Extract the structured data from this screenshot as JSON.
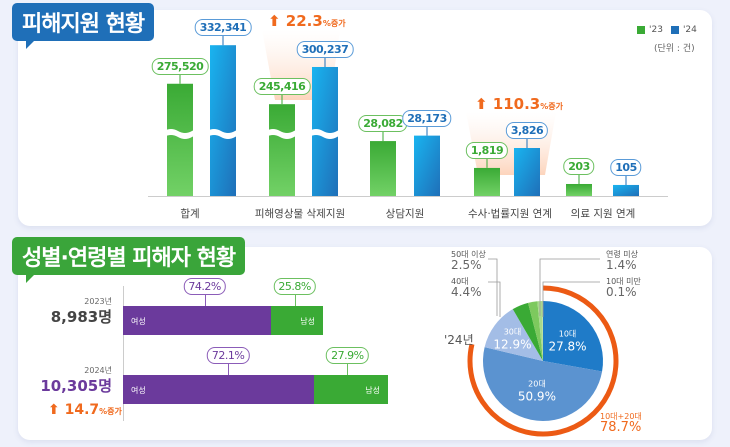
{
  "section1": {
    "title": "피해지원 현황",
    "legend": [
      {
        "label": "'23",
        "color": "#3aaa35"
      },
      {
        "label": "'24",
        "color": "#1f6fb8"
      }
    ],
    "unit": "(단위 : 건)",
    "increases": [
      {
        "value": "22.3",
        "suffix": "%증가"
      },
      {
        "value": "110.3",
        "suffix": "%증가"
      }
    ]
  },
  "section2": {
    "title": "성별·연령별 피해자 현황",
    "years": [
      {
        "year": "2023년",
        "total": "8,983명",
        "female_pct": "74.2%",
        "male_pct": "25.8%",
        "female": 74.2,
        "male": 25.8
      },
      {
        "year": "2024년",
        "total": "10,305명",
        "female_pct": "72.1%",
        "male_pct": "27.9%",
        "female": 72.1,
        "male": 27.9
      }
    ],
    "female_label": "여성",
    "male_label": "남성",
    "increase": {
      "value": "14.7",
      "suffix": "%증가"
    },
    "pie_year": "'24년",
    "combined": {
      "label": "10대+20대",
      "value": "78.7%"
    }
  },
  "chart_data": [
    {
      "type": "bar",
      "title": "피해지원 현황",
      "categories": [
        "합계",
        "피해영상물 삭제지원",
        "상담지원",
        "수사·법률지원 연계",
        "의료 지원 연계"
      ],
      "series": [
        {
          "name": "'23",
          "values": [
            275520,
            245416,
            28082,
            1819,
            203
          ],
          "labels": [
            "275,520",
            "245,416",
            "28,082",
            "1,819",
            "203"
          ]
        },
        {
          "name": "'24",
          "values": [
            332341,
            300237,
            28173,
            3826,
            105
          ],
          "labels": [
            "332,341",
            "300,237",
            "28,173",
            "3,826",
            "105"
          ]
        }
      ],
      "axis_break": true
    },
    {
      "type": "pie",
      "slices": [
        {
          "label": "10대",
          "value": 27.8,
          "text": "27.8%",
          "color": "#1f7bc8"
        },
        {
          "label": "20대",
          "value": 50.9,
          "text": "50.9%",
          "color": "#5b93d0"
        },
        {
          "label": "30대",
          "value": 12.9,
          "text": "12.9%",
          "color": "#a3bde6"
        },
        {
          "label": "40대",
          "value": 4.4,
          "text": "4.4%",
          "color": "#3aaa35"
        },
        {
          "label": "50대 이상",
          "value": 2.5,
          "text": "2.5%",
          "color": "#7dc95e"
        },
        {
          "label": "연령 미상",
          "value": 1.4,
          "text": "1.4%",
          "color": "#a8da8c"
        },
        {
          "label": "10대 미만",
          "value": 0.1,
          "text": "0.1%",
          "color": "#d0ecc0"
        }
      ]
    }
  ]
}
